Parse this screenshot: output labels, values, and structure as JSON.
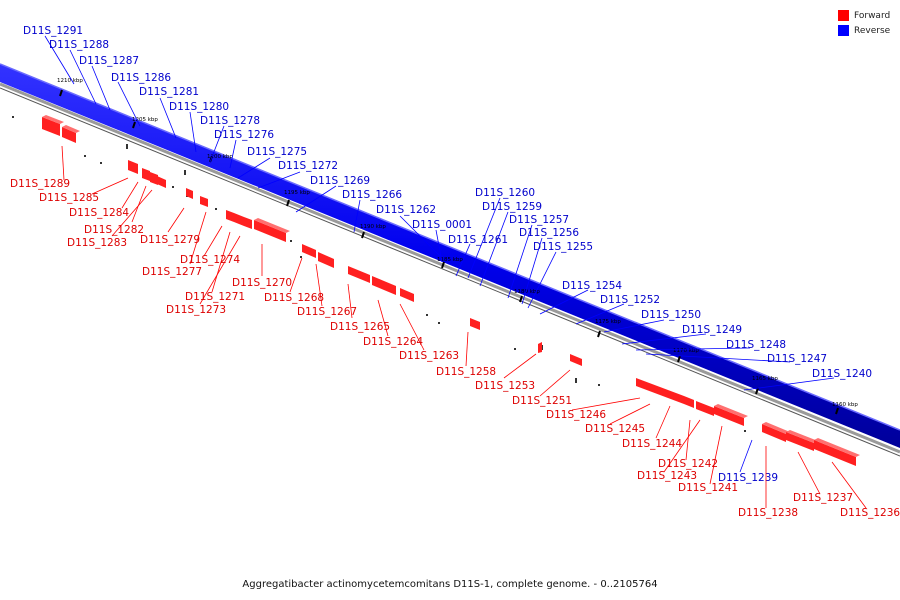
{
  "legend": {
    "forward_label": "Forward",
    "forward_color": "#ff0000",
    "reverse_label": "Reverse",
    "reverse_color": "#0000ff"
  },
  "caption": "Aggregatibacter actinomycetemcomitans D11S-1, complete genome. - 0..2105764",
  "ticks": [
    "1210 kbp",
    "1205 kbp",
    "1200 kbp",
    "1195 kbp",
    "1190 kbp",
    "1185 kbp",
    "1180 kbp",
    "1175 kbp",
    "1170 kbp",
    "1165 kbp",
    "1160 kbp"
  ],
  "reverse_genes": [
    "D11S_1291",
    "D11S_1288",
    "D11S_1287",
    "D11S_1286",
    "D11S_1281",
    "D11S_1280",
    "D11S_1278",
    "D11S_1276",
    "D11S_1275",
    "D11S_1272",
    "D11S_1269",
    "D11S_1266",
    "D11S_1262",
    "D11S_0001",
    "D11S_1261",
    "D11S_1260",
    "D11S_1259",
    "D11S_1257",
    "D11S_1256",
    "D11S_1255",
    "D11S_1254",
    "D11S_1252",
    "D11S_1250",
    "D11S_1249",
    "D11S_1248",
    "D11S_1247",
    "D11S_1240",
    "D11S_1239"
  ],
  "forward_genes": [
    "D11S_1289",
    "D11S_1285",
    "D11S_1284",
    "D11S_1282",
    "D11S_1283",
    "D11S_1279",
    "D11S_1277",
    "D11S_1274",
    "D11S_1271",
    "D11S_1273",
    "D11S_1270",
    "D11S_1268",
    "D11S_1267",
    "D11S_1265",
    "D11S_1264",
    "D11S_1263",
    "D11S_1258",
    "D11S_1253",
    "D11S_1251",
    "D11S_1246",
    "D11S_1245",
    "D11S_1244",
    "D11S_1242",
    "D11S_1243",
    "D11S_1241",
    "D11S_1238",
    "D11S_1237",
    "D11S_1236"
  ]
}
